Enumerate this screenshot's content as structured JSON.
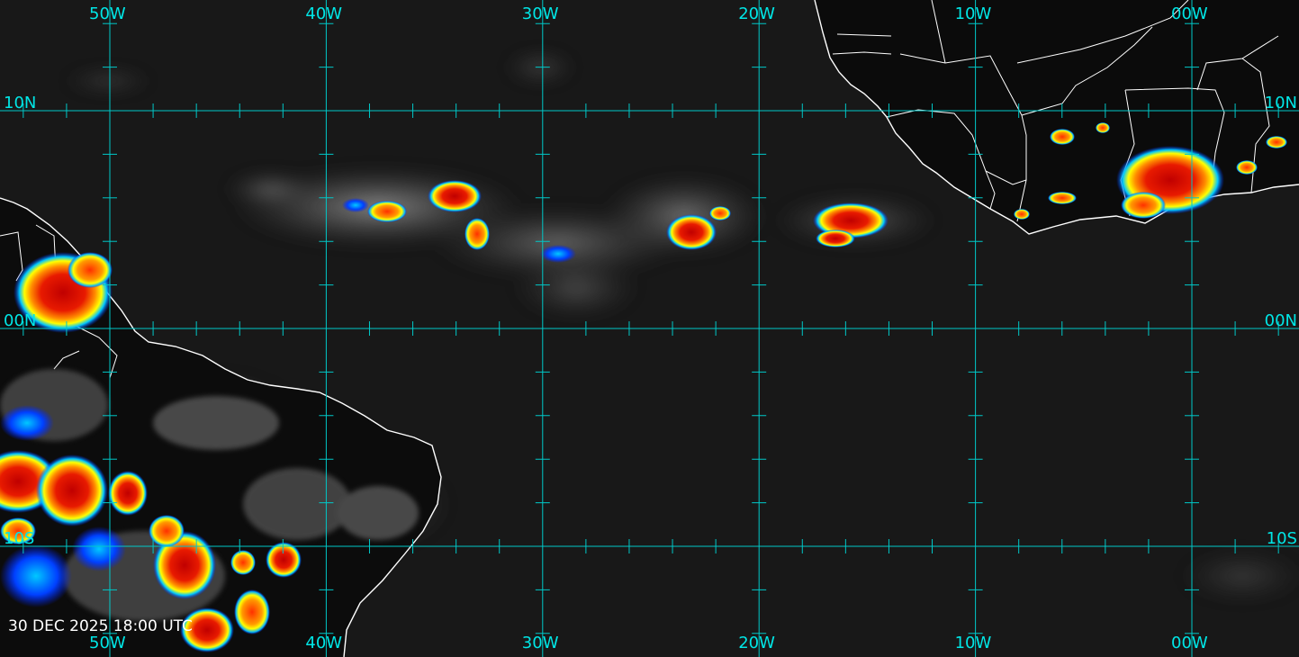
{
  "map": {
    "timestamp": "30 DEC 2025 18:00 UTC",
    "colors": {
      "ocean": "#181818",
      "land": "#0d0d0d",
      "grid": "#00c8c8",
      "grid_label": "#00e6e6",
      "coastline": "#ffffff",
      "stamp": "#ffffff",
      "enhance_cold": "#d40000",
      "enhance_mid": "#ff8c00",
      "enhance_warm": "#ffff00",
      "enhance_cyan": "#00c8ff",
      "enhance_blue": "#0020ff",
      "cloud_gray": "#8a8a8a"
    },
    "longitudes": [
      {
        "value": -50,
        "label": "50W"
      },
      {
        "value": -40,
        "label": "40W"
      },
      {
        "value": -30,
        "label": "30W"
      },
      {
        "value": -20,
        "label": "20W"
      },
      {
        "value": -10,
        "label": "10W"
      },
      {
        "value": 0,
        "label": "00W"
      }
    ],
    "latitudes": [
      {
        "value": 10,
        "label": "10N"
      },
      {
        "value": 0,
        "label": "00N"
      },
      {
        "value": -10,
        "label": "10S"
      }
    ]
  }
}
